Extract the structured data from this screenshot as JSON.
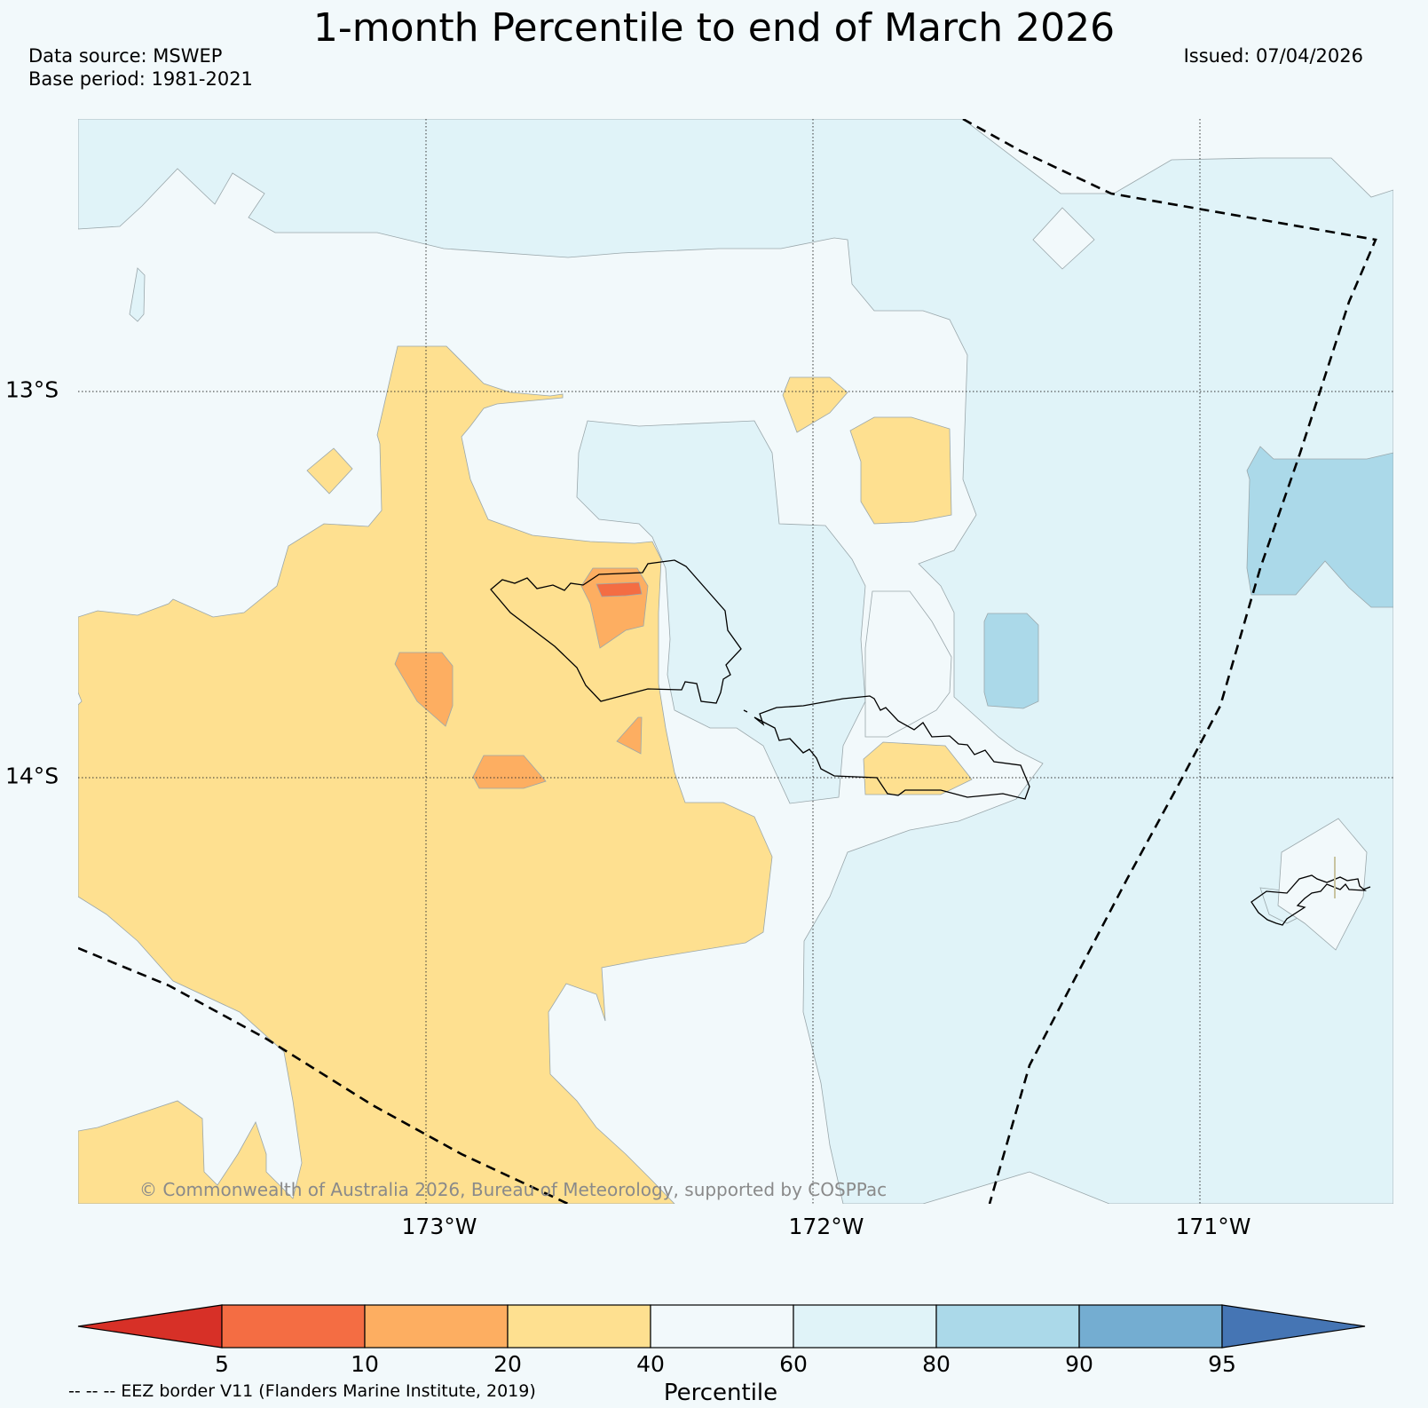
{
  "title": "1-month Percentile to end of March 2026",
  "meta": {
    "data_source": "Data source: MSWEP",
    "base_period": "Base period: 1981-2021",
    "issued": "Issued: 07/04/2026"
  },
  "axes": {
    "lon_labels": [
      "173°W",
      "172°W",
      "171°W"
    ],
    "lat_labels": [
      "13°S",
      "14°S"
    ]
  },
  "colorbar": {
    "label": "Percentile",
    "ticks": [
      "5",
      "10",
      "20",
      "40",
      "60",
      "80",
      "90",
      "95"
    ],
    "colors": [
      "#d73027",
      "#f46d43",
      "#fdae61",
      "#fee090",
      "#f2f9fb",
      "#e0f3f8",
      "#abd9e9",
      "#74add1",
      "#4575b4"
    ]
  },
  "colors": {
    "below_40": "#fee090",
    "below_20": "#fdae61",
    "below_10": "#f46d43",
    "above_60": "#e0f3f8",
    "above_80": "#abd9e9",
    "background": "#f2f9fb"
  },
  "legend_note": "-- -- -- EEZ border V11 (Flanders Marine Institute, 2019)",
  "copyright": "© Commonwealth of Australia 2026, Bureau of Meteorology, supported by COSPPac"
}
